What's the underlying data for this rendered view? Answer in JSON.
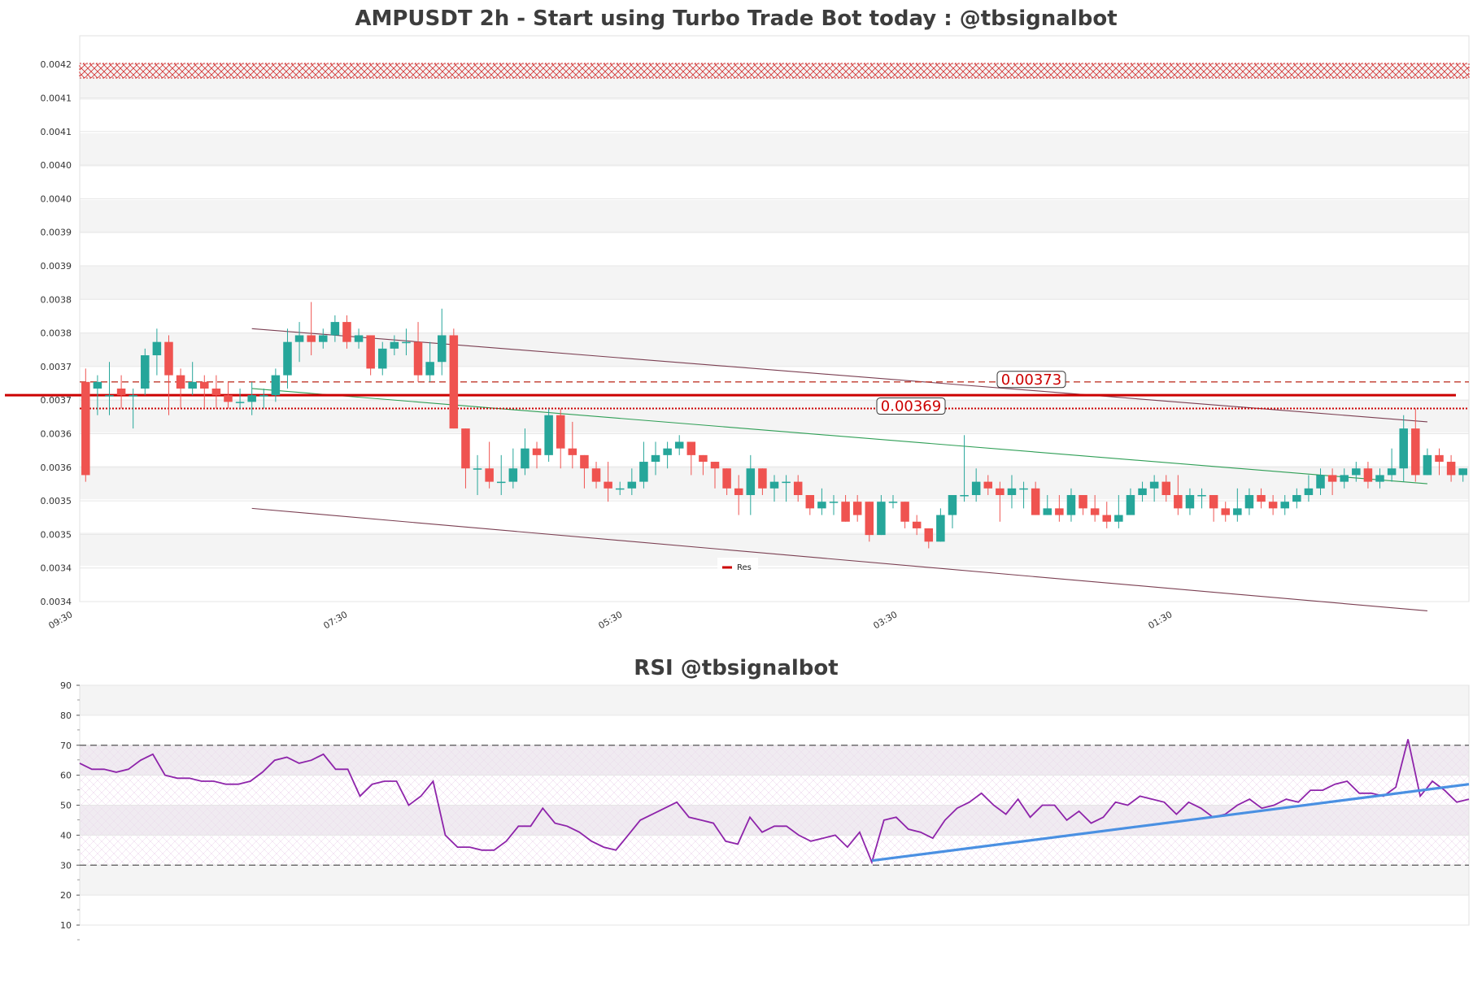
{
  "chart_data": [
    {
      "type": "candlestick",
      "title": "AMPUSDT 2h - Start using Turbo Trade Bot today : @tbsignalbot",
      "y_ticks": [
        "0.0042",
        "0.0041",
        "0.0041",
        "0.0040",
        "0.0040",
        "0.0039",
        "0.0039",
        "0.0038",
        "0.0038",
        "0.0037",
        "0.0037",
        "0.0036",
        "0.0036",
        "0.0035",
        "0.0035",
        "0.0034",
        "0.0034"
      ],
      "x_ticks": [
        "09:30",
        "07:30",
        "05:30",
        "03:30",
        "01:30"
      ],
      "ylim": [
        0.0034,
        0.00425
      ],
      "grid": "horizontal-bands",
      "legend": {
        "position": "bottom-center",
        "entries": [
          "Res"
        ]
      },
      "resistance_zone": [
        0.00419,
        0.00421
      ],
      "levels": [
        {
          "value": 0.00373,
          "label": "0.00373",
          "style": "dashed",
          "color": "#c0392b"
        },
        {
          "value": 0.00369,
          "label": "0.00369",
          "style": "dotted",
          "color": "#cc0000"
        },
        {
          "value": 0.00371,
          "label": "",
          "style": "solid",
          "color": "#cc0000"
        }
      ],
      "trendlines": [
        {
          "name": "channel-top",
          "from": [
            14,
            0.00381
          ],
          "to": [
            113,
            0.00367
          ],
          "color": "#7b3f52"
        },
        {
          "name": "channel-bottom",
          "from": [
            14,
            0.00354
          ],
          "to": [
            113,
            0.003386
          ],
          "color": "#7b3f52"
        },
        {
          "name": "support-trend",
          "from": [
            14,
            0.00372
          ],
          "to": [
            113,
            0.003577
          ],
          "color": "#2e9e55"
        }
      ],
      "candles": [
        [
          0.00373,
          0.00359,
          0.00375,
          0.00358
        ],
        [
          0.00372,
          0.00373,
          0.00374,
          0.00368
        ],
        [
          0.00371,
          0.00371,
          0.00376,
          0.00368
        ],
        [
          0.00372,
          0.00371,
          0.00374,
          0.00369
        ],
        [
          0.00371,
          0.00371,
          0.00372,
          0.00366
        ],
        [
          0.00372,
          0.00377,
          0.00378,
          0.00371
        ],
        [
          0.00377,
          0.00379,
          0.00381,
          0.00374
        ],
        [
          0.00379,
          0.00374,
          0.0038,
          0.00368
        ],
        [
          0.00374,
          0.00372,
          0.00375,
          0.00369
        ],
        [
          0.00372,
          0.00373,
          0.00376,
          0.00371
        ],
        [
          0.00373,
          0.00372,
          0.00374,
          0.00369
        ],
        [
          0.00372,
          0.00371,
          0.00374,
          0.00369
        ],
        [
          0.00371,
          0.0037,
          0.00373,
          0.00369
        ],
        [
          0.0037,
          0.0037,
          0.00372,
          0.00369
        ],
        [
          0.0037,
          0.00371,
          0.00373,
          0.00368
        ],
        [
          0.00371,
          0.00371,
          0.00372,
          0.00369
        ],
        [
          0.00371,
          0.00374,
          0.00375,
          0.0037
        ],
        [
          0.00374,
          0.00379,
          0.00381,
          0.00372
        ],
        [
          0.00379,
          0.0038,
          0.00382,
          0.00376
        ],
        [
          0.0038,
          0.00379,
          0.00385,
          0.00377
        ],
        [
          0.00379,
          0.0038,
          0.00381,
          0.00378
        ],
        [
          0.0038,
          0.00382,
          0.00383,
          0.00379
        ],
        [
          0.00382,
          0.00379,
          0.00383,
          0.00378
        ],
        [
          0.00379,
          0.0038,
          0.00381,
          0.00378
        ],
        [
          0.0038,
          0.00375,
          0.0038,
          0.00374
        ],
        [
          0.00375,
          0.00378,
          0.00379,
          0.00374
        ],
        [
          0.00378,
          0.00379,
          0.0038,
          0.00377
        ],
        [
          0.00379,
          0.00379,
          0.00381,
          0.00377
        ],
        [
          0.00379,
          0.00374,
          0.00382,
          0.00373
        ],
        [
          0.00374,
          0.00376,
          0.00379,
          0.00373
        ],
        [
          0.00376,
          0.0038,
          0.00384,
          0.00374
        ],
        [
          0.0038,
          0.00366,
          0.00381,
          0.00366
        ],
        [
          0.00366,
          0.0036,
          0.00366,
          0.00357
        ],
        [
          0.0036,
          0.0036,
          0.00362,
          0.00356
        ],
        [
          0.0036,
          0.00358,
          0.00364,
          0.00357
        ],
        [
          0.00358,
          0.00358,
          0.00362,
          0.00356
        ],
        [
          0.00358,
          0.0036,
          0.00363,
          0.00357
        ],
        [
          0.0036,
          0.00363,
          0.00366,
          0.00359
        ],
        [
          0.00363,
          0.00362,
          0.00364,
          0.0036
        ],
        [
          0.00362,
          0.00368,
          0.00369,
          0.00361
        ],
        [
          0.00368,
          0.00363,
          0.00369,
          0.0036
        ],
        [
          0.00363,
          0.00362,
          0.00367,
          0.0036
        ],
        [
          0.00362,
          0.0036,
          0.00362,
          0.00357
        ],
        [
          0.0036,
          0.00358,
          0.00361,
          0.00357
        ],
        [
          0.00358,
          0.00357,
          0.00361,
          0.00355
        ],
        [
          0.00357,
          0.00357,
          0.00358,
          0.00356
        ],
        [
          0.00357,
          0.00358,
          0.0036,
          0.00356
        ],
        [
          0.00358,
          0.00361,
          0.00364,
          0.00357
        ],
        [
          0.00361,
          0.00362,
          0.00364,
          0.00359
        ],
        [
          0.00362,
          0.00363,
          0.00364,
          0.0036
        ],
        [
          0.00363,
          0.00364,
          0.00365,
          0.00362
        ],
        [
          0.00364,
          0.00362,
          0.00364,
          0.00359
        ],
        [
          0.00362,
          0.00361,
          0.00362,
          0.00359
        ],
        [
          0.00361,
          0.0036,
          0.00361,
          0.00357
        ],
        [
          0.0036,
          0.00357,
          0.0036,
          0.00356
        ],
        [
          0.00357,
          0.00356,
          0.00359,
          0.00353
        ],
        [
          0.00356,
          0.0036,
          0.00362,
          0.00353
        ],
        [
          0.0036,
          0.00357,
          0.0036,
          0.00356
        ],
        [
          0.00357,
          0.00358,
          0.00359,
          0.00355
        ],
        [
          0.00358,
          0.00358,
          0.00359,
          0.00355
        ],
        [
          0.00358,
          0.00356,
          0.00359,
          0.00355
        ],
        [
          0.00356,
          0.00354,
          0.00356,
          0.00353
        ],
        [
          0.00354,
          0.00355,
          0.00357,
          0.00353
        ],
        [
          0.00355,
          0.00355,
          0.00356,
          0.00353
        ],
        [
          0.00355,
          0.00352,
          0.00356,
          0.00352
        ],
        [
          0.00355,
          0.00353,
          0.00356,
          0.00352
        ],
        [
          0.00355,
          0.0035,
          0.00355,
          0.00349
        ],
        [
          0.0035,
          0.00355,
          0.00356,
          0.0035
        ],
        [
          0.00355,
          0.00355,
          0.00356,
          0.00354
        ],
        [
          0.00355,
          0.00352,
          0.00355,
          0.00351
        ],
        [
          0.00352,
          0.00351,
          0.00353,
          0.0035
        ],
        [
          0.00351,
          0.00349,
          0.00351,
          0.00348
        ],
        [
          0.00349,
          0.00353,
          0.00354,
          0.00349
        ],
        [
          0.00353,
          0.00356,
          0.00356,
          0.00351
        ],
        [
          0.00356,
          0.00356,
          0.00365,
          0.00355
        ],
        [
          0.00356,
          0.00358,
          0.0036,
          0.00355
        ],
        [
          0.00358,
          0.00357,
          0.00359,
          0.00356
        ],
        [
          0.00357,
          0.00356,
          0.00358,
          0.00352
        ],
        [
          0.00356,
          0.00357,
          0.00359,
          0.00354
        ],
        [
          0.00357,
          0.00357,
          0.00358,
          0.00354
        ],
        [
          0.00357,
          0.00353,
          0.00358,
          0.00353
        ],
        [
          0.00353,
          0.00354,
          0.00356,
          0.00353
        ],
        [
          0.00354,
          0.00353,
          0.00356,
          0.00352
        ],
        [
          0.00353,
          0.00356,
          0.00357,
          0.00352
        ],
        [
          0.00356,
          0.00354,
          0.00356,
          0.00353
        ],
        [
          0.00354,
          0.00353,
          0.00356,
          0.00352
        ],
        [
          0.00353,
          0.00352,
          0.00355,
          0.00351
        ],
        [
          0.00352,
          0.00353,
          0.00356,
          0.00351
        ],
        [
          0.00353,
          0.00356,
          0.00357,
          0.00353
        ],
        [
          0.00356,
          0.00357,
          0.00358,
          0.00355
        ],
        [
          0.00357,
          0.00358,
          0.00359,
          0.00355
        ],
        [
          0.00358,
          0.00356,
          0.00359,
          0.00355
        ],
        [
          0.00356,
          0.00354,
          0.00359,
          0.00353
        ],
        [
          0.00354,
          0.00356,
          0.00357,
          0.00353
        ],
        [
          0.00356,
          0.00356,
          0.00357,
          0.00354
        ],
        [
          0.00356,
          0.00354,
          0.00356,
          0.00352
        ],
        [
          0.00354,
          0.00353,
          0.00355,
          0.00352
        ],
        [
          0.00353,
          0.00354,
          0.00357,
          0.00352
        ],
        [
          0.00354,
          0.00356,
          0.00357,
          0.00353
        ],
        [
          0.00356,
          0.00355,
          0.00357,
          0.00354
        ],
        [
          0.00355,
          0.00354,
          0.00356,
          0.00353
        ],
        [
          0.00354,
          0.00355,
          0.00356,
          0.00353
        ],
        [
          0.00355,
          0.00356,
          0.00357,
          0.00354
        ],
        [
          0.00356,
          0.00357,
          0.00359,
          0.00355
        ],
        [
          0.00357,
          0.00359,
          0.0036,
          0.00356
        ],
        [
          0.00359,
          0.00358,
          0.0036,
          0.00356
        ],
        [
          0.00358,
          0.00359,
          0.0036,
          0.00357
        ],
        [
          0.00359,
          0.0036,
          0.00361,
          0.00358
        ],
        [
          0.0036,
          0.00358,
          0.00361,
          0.00357
        ],
        [
          0.00358,
          0.00359,
          0.0036,
          0.00357
        ],
        [
          0.00359,
          0.0036,
          0.00363,
          0.00358
        ],
        [
          0.0036,
          0.00366,
          0.00368,
          0.00358
        ],
        [
          0.00366,
          0.00359,
          0.00369,
          0.00358
        ],
        [
          0.00359,
          0.00362,
          0.00363,
          0.00359
        ],
        [
          0.00362,
          0.00361,
          0.00363,
          0.00359
        ],
        [
          0.00361,
          0.00359,
          0.00362,
          0.00358
        ],
        [
          0.00359,
          0.0036,
          0.0036,
          0.00358
        ]
      ]
    },
    {
      "type": "line",
      "title": "RSI @tbsignalbot",
      "y_ticks": [
        "90",
        "80",
        "70",
        "60",
        "50",
        "40",
        "30",
        "20",
        "10"
      ],
      "ylim": [
        10,
        90
      ],
      "overbought": 70,
      "oversold": 30,
      "band": [
        40,
        60
      ],
      "series": [
        {
          "color": "#8e24aa",
          "values": [
            64,
            62,
            62,
            61,
            62,
            65,
            67,
            60,
            59,
            59,
            58,
            58,
            57,
            57,
            58,
            61,
            65,
            66,
            64,
            65,
            67,
            62,
            62,
            53,
            57,
            58,
            58,
            50,
            53,
            58,
            40,
            36,
            36,
            35,
            35,
            38,
            43,
            43,
            49,
            44,
            43,
            41,
            38,
            36,
            35,
            40,
            45,
            47,
            49,
            51,
            46,
            45,
            44,
            38,
            37,
            46,
            41,
            43,
            43,
            40,
            38,
            39,
            40,
            36,
            41,
            31,
            45,
            46,
            42,
            41,
            39,
            45,
            49,
            51,
            54,
            50,
            47,
            52,
            46,
            50,
            50,
            45,
            48,
            44,
            46,
            51,
            50,
            53,
            52,
            51,
            47,
            51,
            49,
            46,
            47,
            50,
            52,
            49,
            50,
            52,
            51,
            55,
            55,
            57,
            58,
            54,
            54,
            53,
            56,
            72,
            53,
            58,
            55,
            51,
            52
          ]
        }
      ],
      "trendline": {
        "from": [
          65,
          31.5
        ],
        "to": [
          114,
          57
        ],
        "color": "#4a90e2"
      }
    }
  ]
}
